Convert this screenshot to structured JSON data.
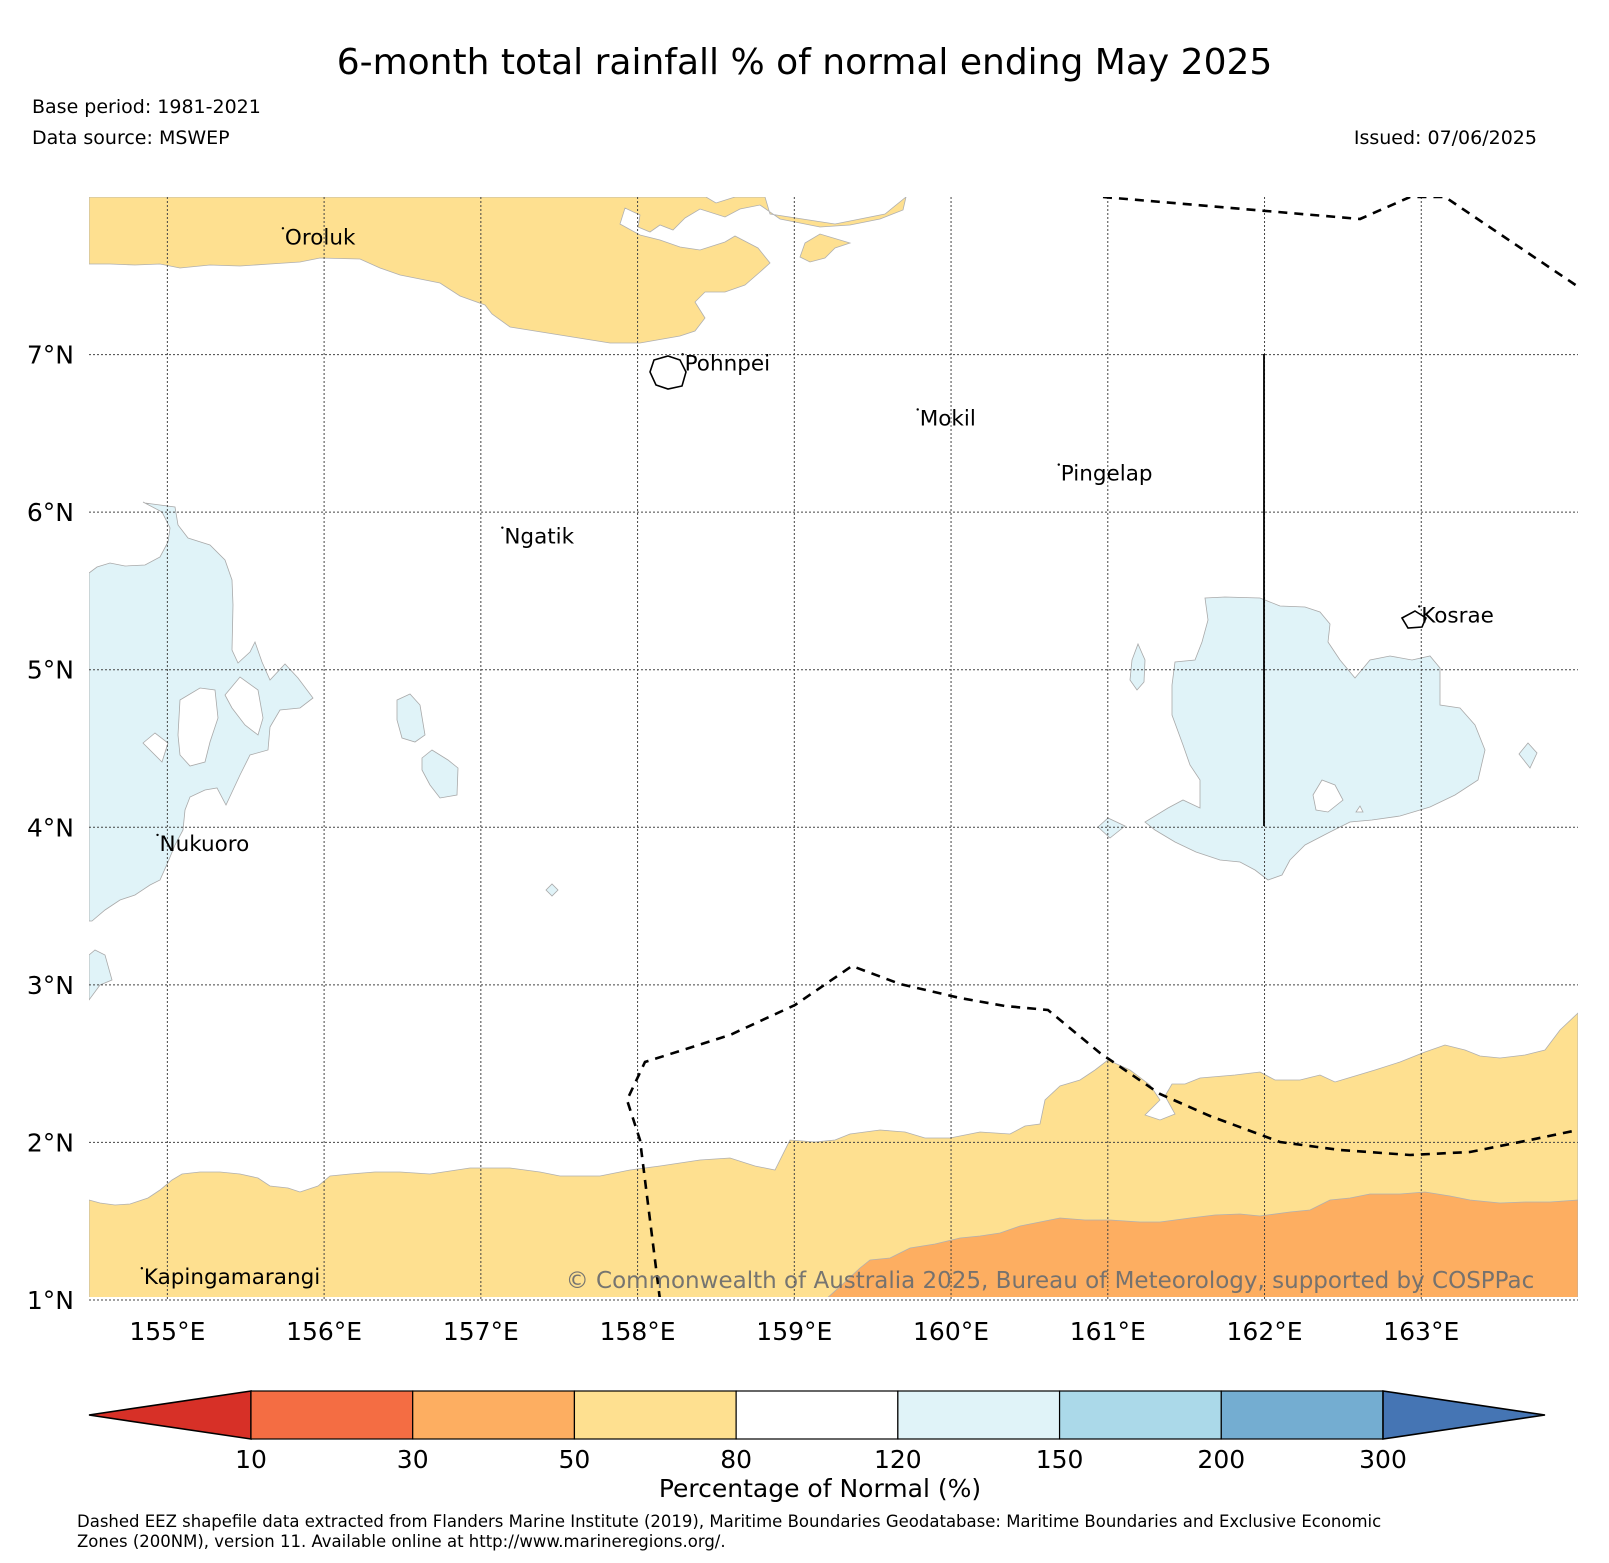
{
  "title": "6-month total rainfall % of normal ending May 2025",
  "base_period": "Base period: 1981-2021",
  "data_source": "Data source: MSWEP",
  "issued": "Issued: 07/06/2025",
  "copyright": "© Commonwealth of Australia 2025, Bureau of Meteorology, supported by COSPPac",
  "map": {
    "lon_range": [
      154.5,
      164.0
    ],
    "lat_range": [
      1.0,
      8.0
    ],
    "lon_ticks": [
      155,
      156,
      157,
      158,
      159,
      160,
      161,
      162,
      163
    ],
    "lon_tick_labels": [
      "155°E",
      "156°E",
      "157°E",
      "158°E",
      "159°E",
      "160°E",
      "161°E",
      "162°E",
      "163°E"
    ],
    "lat_ticks": [
      1,
      2,
      3,
      4,
      5,
      6,
      7
    ],
    "lat_tick_labels": [
      "1°N",
      "2°N",
      "3°N",
      "4°N",
      "5°N",
      "6°N",
      "7°N"
    ],
    "gridlines": true
  },
  "places": [
    {
      "name": "Oroluk",
      "lon": 155.75,
      "lat": 7.7
    },
    {
      "name": "Pohnpei",
      "lon": 158.3,
      "lat": 6.9
    },
    {
      "name": "Mokil",
      "lon": 159.8,
      "lat": 6.55
    },
    {
      "name": "Pingelap",
      "lon": 160.7,
      "lat": 6.2
    },
    {
      "name": "Ngatik",
      "lon": 157.15,
      "lat": 5.8
    },
    {
      "name": "Kosrae",
      "lon": 163.0,
      "lat": 5.3
    },
    {
      "name": "Nukuoro",
      "lon": 154.95,
      "lat": 3.85
    },
    {
      "name": "Kapingamarangi",
      "lon": 154.85,
      "lat": 1.1
    }
  ],
  "colorbar": {
    "bins": [
      {
        "color": "#d73027"
      },
      {
        "color": "#f46d43"
      },
      {
        "color": "#fdae61"
      },
      {
        "color": "#fee090"
      },
      {
        "color": "#ffffff"
      },
      {
        "color": "#e0f3f8"
      },
      {
        "color": "#abd9e9"
      },
      {
        "color": "#74add1"
      },
      {
        "color": "#4575b4"
      }
    ],
    "tick_labels": [
      "10",
      "30",
      "50",
      "80",
      "120",
      "150",
      "200",
      "300"
    ],
    "label": "Percentage of Normal (%)"
  },
  "footnote_line1": "Dashed EEZ shapefile data extracted from Flanders Marine Institute (2019), Maritime Boundaries Geodatabase: Maritime Boundaries and Exclusive Economic",
  "footnote_line2": "Zones (200NM), version 11. Available online at http://www.marineregions.org/."
}
